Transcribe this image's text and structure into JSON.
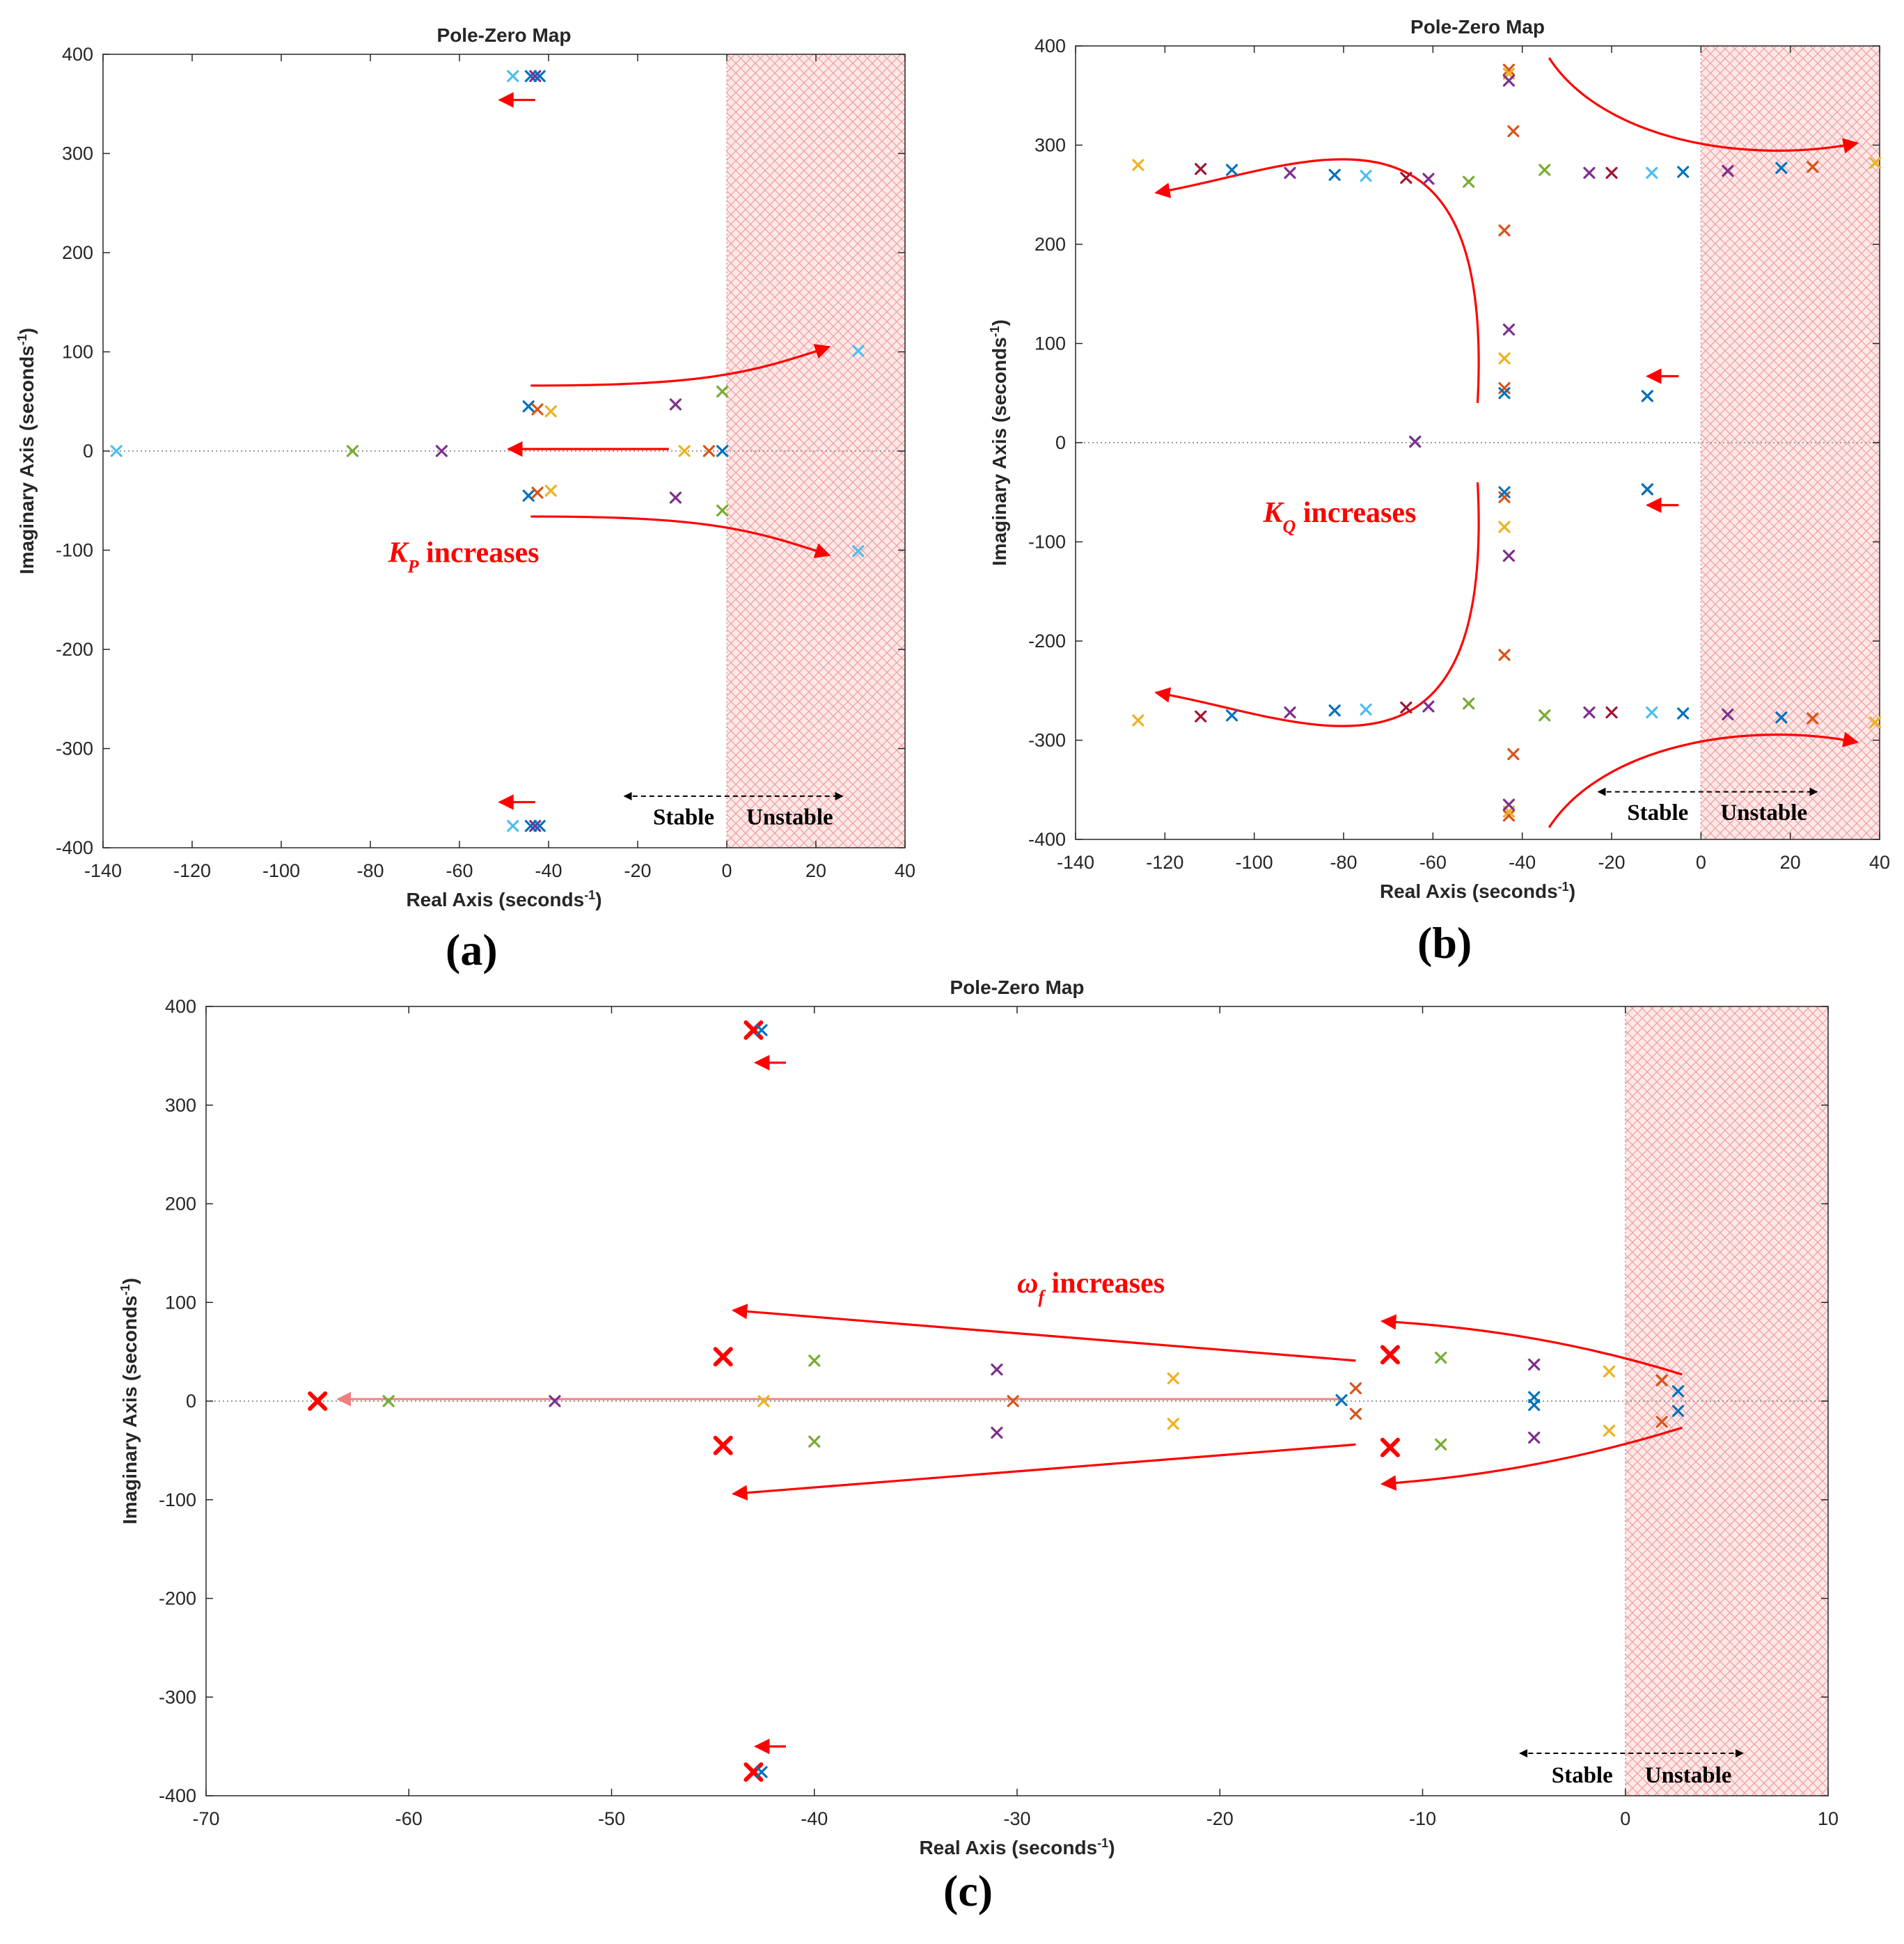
{
  "colors": {
    "blue": "#0072BD",
    "orange": "#D95319",
    "yellow": "#EDB120",
    "purple": "#7E2F8E",
    "green": "#77AC30",
    "cyan": "#4DBEEE",
    "maroon": "#A2142F",
    "red": "#FF0000",
    "unstable_fill": "#FFE4E4",
    "hatch": "#F0A0A0"
  },
  "chart_data": [
    {
      "type": "scatter",
      "panel": "(a)",
      "title": "Pole-Zero Map",
      "xlabel": "Real Axis (seconds",
      "ylabel": "Imaginary Axis (seconds",
      "unit_exp": "-1",
      "xlim": [
        -140,
        40
      ],
      "ylim": [
        -400,
        400
      ],
      "xticks": [
        -140,
        -120,
        -100,
        -80,
        -60,
        -40,
        -20,
        0,
        20,
        40
      ],
      "yticks": [
        -400,
        -300,
        -200,
        -100,
        0,
        100,
        200,
        300,
        400
      ],
      "unstable_region": [
        0,
        40
      ],
      "annotation": {
        "x": -76,
        "y": -112,
        "main": "K",
        "sub": "P",
        "rest": " increases"
      },
      "stability_labels": {
        "stable": "Stable",
        "unstable": "Unstable",
        "y": -368
      },
      "stability_arrow": {
        "x1": -23,
        "x2": 26,
        "y": -348
      },
      "poles": [
        {
          "x": -48,
          "y": 378,
          "c": "cyan"
        },
        {
          "x": -44,
          "y": 378,
          "c": "blue"
        },
        {
          "x": -43,
          "y": 378,
          "c": "purple"
        },
        {
          "x": -42,
          "y": 378,
          "c": "blue"
        },
        {
          "x": -48,
          "y": -378,
          "c": "cyan"
        },
        {
          "x": -44,
          "y": -378,
          "c": "blue"
        },
        {
          "x": -43,
          "y": -378,
          "c": "purple"
        },
        {
          "x": -42,
          "y": -378,
          "c": "blue"
        },
        {
          "x": -137,
          "y": 0,
          "c": "cyan"
        },
        {
          "x": -84,
          "y": 0,
          "c": "green"
        },
        {
          "x": -64,
          "y": 0,
          "c": "purple"
        },
        {
          "x": -9.5,
          "y": 0,
          "c": "yellow"
        },
        {
          "x": -4,
          "y": 0,
          "c": "orange"
        },
        {
          "x": -1,
          "y": 0,
          "c": "blue"
        },
        {
          "x": -44.5,
          "y": 45,
          "c": "blue"
        },
        {
          "x": -42.5,
          "y": 42,
          "c": "orange"
        },
        {
          "x": -39.5,
          "y": 40,
          "c": "yellow"
        },
        {
          "x": -11.5,
          "y": 47,
          "c": "purple"
        },
        {
          "x": -1,
          "y": 60,
          "c": "green"
        },
        {
          "x": 29.5,
          "y": 101,
          "c": "cyan"
        },
        {
          "x": -44.5,
          "y": -45,
          "c": "blue"
        },
        {
          "x": -42.5,
          "y": -42,
          "c": "orange"
        },
        {
          "x": -39.5,
          "y": -40,
          "c": "yellow"
        },
        {
          "x": -11.5,
          "y": -47,
          "c": "purple"
        },
        {
          "x": -1,
          "y": -60,
          "c": "green"
        },
        {
          "x": 29.5,
          "y": -101,
          "c": "cyan"
        }
      ],
      "arrows": [
        {
          "pts": [
            [
              -43,
              354
            ],
            [
              -51,
              354
            ]
          ],
          "curve": false
        },
        {
          "pts": [
            [
              -43,
              -354
            ],
            [
              -51,
              -354
            ]
          ],
          "curve": false
        },
        {
          "pts": [
            [
              -13,
              2
            ],
            [
              -49,
              2
            ]
          ],
          "curve": false
        },
        {
          "pts": [
            [
              -44,
              66
            ],
            [
              -5,
              66
            ],
            [
              5,
              78
            ],
            [
              23,
              105
            ]
          ],
          "curve": true
        },
        {
          "pts": [
            [
              -44,
              -66
            ],
            [
              -5,
              -66
            ],
            [
              5,
              -78
            ],
            [
              23,
              -105
            ]
          ],
          "curve": true
        }
      ]
    },
    {
      "type": "scatter",
      "panel": "(b)",
      "title": "Pole-Zero Map",
      "xlabel": "Real Axis (seconds",
      "ylabel": "Imaginary Axis (seconds",
      "unit_exp": "-1",
      "xlim": [
        -140,
        40
      ],
      "ylim": [
        -400,
        400
      ],
      "xticks": [
        -140,
        -120,
        -100,
        -80,
        -60,
        -40,
        -20,
        0,
        20,
        40
      ],
      "yticks": [
        -400,
        -300,
        -200,
        -100,
        0,
        100,
        200,
        300,
        400
      ],
      "unstable_region": [
        0,
        40
      ],
      "annotation": {
        "x": -98,
        "y": -80,
        "main": "K",
        "sub": "Q",
        "rest": " increases"
      },
      "stability_labels": {
        "stable": "Stable",
        "unstable": "Unstable",
        "y": -372
      },
      "stability_arrow": {
        "x1": -23,
        "x2": 26,
        "y": -352
      },
      "poles": [
        {
          "x": -126,
          "y": 280,
          "c": "yellow"
        },
        {
          "x": -112,
          "y": 276,
          "c": "maroon"
        },
        {
          "x": -105,
          "y": 275,
          "c": "blue"
        },
        {
          "x": -92,
          "y": 272,
          "c": "purple"
        },
        {
          "x": -82,
          "y": 270,
          "c": "blue"
        },
        {
          "x": -75,
          "y": 269,
          "c": "cyan"
        },
        {
          "x": -66,
          "y": 267,
          "c": "maroon"
        },
        {
          "x": -61,
          "y": 266,
          "c": "purple"
        },
        {
          "x": -52,
          "y": 263,
          "c": "green"
        },
        {
          "x": -35,
          "y": 275,
          "c": "green"
        },
        {
          "x": -25,
          "y": 272,
          "c": "purple"
        },
        {
          "x": -20,
          "y": 272,
          "c": "maroon"
        },
        {
          "x": -11,
          "y": 272,
          "c": "cyan"
        },
        {
          "x": -4,
          "y": 273,
          "c": "blue"
        },
        {
          "x": 6,
          "y": 274,
          "c": "purple"
        },
        {
          "x": 18,
          "y": 277,
          "c": "blue"
        },
        {
          "x": 25,
          "y": 278,
          "c": "orange"
        },
        {
          "x": 39,
          "y": 282,
          "c": "yellow"
        },
        {
          "x": -126,
          "y": -280,
          "c": "yellow"
        },
        {
          "x": -112,
          "y": -276,
          "c": "maroon"
        },
        {
          "x": -105,
          "y": -275,
          "c": "blue"
        },
        {
          "x": -92,
          "y": -272,
          "c": "purple"
        },
        {
          "x": -82,
          "y": -270,
          "c": "blue"
        },
        {
          "x": -75,
          "y": -269,
          "c": "cyan"
        },
        {
          "x": -66,
          "y": -267,
          "c": "maroon"
        },
        {
          "x": -61,
          "y": -266,
          "c": "purple"
        },
        {
          "x": -52,
          "y": -263,
          "c": "green"
        },
        {
          "x": -35,
          "y": -275,
          "c": "green"
        },
        {
          "x": -25,
          "y": -272,
          "c": "purple"
        },
        {
          "x": -20,
          "y": -272,
          "c": "maroon"
        },
        {
          "x": -11,
          "y": -272,
          "c": "cyan"
        },
        {
          "x": -4,
          "y": -273,
          "c": "blue"
        },
        {
          "x": 6,
          "y": -274,
          "c": "purple"
        },
        {
          "x": 18,
          "y": -277,
          "c": "blue"
        },
        {
          "x": 25,
          "y": -278,
          "c": "orange"
        },
        {
          "x": 39,
          "y": -282,
          "c": "yellow"
        },
        {
          "x": -43,
          "y": 376,
          "c": "orange"
        },
        {
          "x": -43,
          "y": 372,
          "c": "yellow"
        },
        {
          "x": -43,
          "y": 365,
          "c": "purple"
        },
        {
          "x": -42,
          "y": 314,
          "c": "orange"
        },
        {
          "x": -44,
          "y": 214,
          "c": "orange"
        },
        {
          "x": -43,
          "y": 114,
          "c": "purple"
        },
        {
          "x": -44,
          "y": 85,
          "c": "yellow"
        },
        {
          "x": -44,
          "y": 55,
          "c": "orange"
        },
        {
          "x": -44,
          "y": 50,
          "c": "blue"
        },
        {
          "x": -43,
          "y": -376,
          "c": "orange"
        },
        {
          "x": -43,
          "y": -372,
          "c": "yellow"
        },
        {
          "x": -43,
          "y": -365,
          "c": "purple"
        },
        {
          "x": -42,
          "y": -314,
          "c": "orange"
        },
        {
          "x": -44,
          "y": -214,
          "c": "orange"
        },
        {
          "x": -43,
          "y": -114,
          "c": "purple"
        },
        {
          "x": -44,
          "y": -85,
          "c": "yellow"
        },
        {
          "x": -44,
          "y": -55,
          "c": "orange"
        },
        {
          "x": -44,
          "y": -50,
          "c": "blue"
        },
        {
          "x": -64,
          "y": 1,
          "c": "blue"
        },
        {
          "x": -64,
          "y": 1,
          "c": "purple"
        },
        {
          "x": -12,
          "y": 47,
          "c": "purple"
        },
        {
          "x": -12,
          "y": 47,
          "c": "blue"
        },
        {
          "x": -12,
          "y": -47,
          "c": "purple"
        },
        {
          "x": -12,
          "y": -47,
          "c": "blue"
        }
      ],
      "arrows": [
        {
          "pts": [
            [
              -50,
              40
            ],
            [
              -46,
              380
            ],
            [
              -90,
              276
            ],
            [
              -122,
              252
            ]
          ],
          "curve": true
        },
        {
          "pts": [
            [
              -50,
              -40
            ],
            [
              -46,
              -380
            ],
            [
              -90,
              -276
            ],
            [
              -122,
              -252
            ]
          ],
          "curve": true
        },
        {
          "pts": [
            [
              -34,
              388
            ],
            [
              -22,
              305
            ],
            [
              10,
              280
            ],
            [
              35,
              302
            ]
          ],
          "curve": true
        },
        {
          "pts": [
            [
              -34,
              -388
            ],
            [
              -22,
              -305
            ],
            [
              10,
              -280
            ],
            [
              35,
              -302
            ]
          ],
          "curve": true
        },
        {
          "pts": [
            [
              -5,
              67
            ],
            [
              -12,
              67
            ]
          ],
          "curve": false
        },
        {
          "pts": [
            [
              -5,
              -63
            ],
            [
              -12,
              -63
            ]
          ],
          "curve": false
        }
      ]
    },
    {
      "type": "scatter",
      "panel": "(c)",
      "title": "Pole-Zero Map",
      "xlabel": "Real Axis (seconds",
      "ylabel": "Imaginary Axis (seconds",
      "unit_exp": "-1",
      "xlim": [
        -70,
        10
      ],
      "ylim": [
        -400,
        400
      ],
      "xticks": [
        -70,
        -60,
        -50,
        -40,
        -30,
        -20,
        -10,
        0,
        10
      ],
      "yticks": [
        -400,
        -300,
        -200,
        -100,
        0,
        100,
        200,
        300,
        400
      ],
      "unstable_region": [
        0,
        10
      ],
      "annotation": {
        "x": -30,
        "y": 110,
        "main": "ω",
        "sub": "f",
        "rest": " increases"
      },
      "stability_labels": {
        "stable": "Stable",
        "unstable": "Unstable",
        "y": -378
      },
      "stability_arrow": {
        "x1": -5.2,
        "x2": 5.8,
        "y": -357
      },
      "poles": [
        {
          "x": -43,
          "y": 376,
          "c": "red",
          "big": true
        },
        {
          "x": -42.6,
          "y": 376,
          "c": "blue"
        },
        {
          "x": -43,
          "y": -376,
          "c": "red",
          "big": true
        },
        {
          "x": -42.6,
          "y": -376,
          "c": "blue"
        },
        {
          "x": -64.5,
          "y": 0,
          "c": "red",
          "big": true
        },
        {
          "x": -61,
          "y": 0,
          "c": "green"
        },
        {
          "x": -52.8,
          "y": 0,
          "c": "purple"
        },
        {
          "x": -42.5,
          "y": 0,
          "c": "yellow"
        },
        {
          "x": -30.2,
          "y": 0,
          "c": "orange"
        },
        {
          "x": -14,
          "y": 1,
          "c": "blue"
        },
        {
          "x": -44.5,
          "y": 45,
          "c": "red",
          "big": true
        },
        {
          "x": -40,
          "y": 41,
          "c": "green"
        },
        {
          "x": -31,
          "y": 32,
          "c": "purple"
        },
        {
          "x": -22.3,
          "y": 23,
          "c": "yellow"
        },
        {
          "x": -13.3,
          "y": 13,
          "c": "orange"
        },
        {
          "x": -11.6,
          "y": 47,
          "c": "red",
          "big": true
        },
        {
          "x": -9.1,
          "y": 44,
          "c": "green"
        },
        {
          "x": -4.5,
          "y": 37,
          "c": "purple"
        },
        {
          "x": -4.5,
          "y": 4,
          "c": "blue"
        },
        {
          "x": -0.8,
          "y": 30,
          "c": "yellow"
        },
        {
          "x": 1.8,
          "y": 21,
          "c": "orange"
        },
        {
          "x": 2.6,
          "y": 10,
          "c": "blue"
        },
        {
          "x": -44.5,
          "y": -45,
          "c": "red",
          "big": true
        },
        {
          "x": -40,
          "y": -41,
          "c": "green"
        },
        {
          "x": -31,
          "y": -32,
          "c": "purple"
        },
        {
          "x": -22.3,
          "y": -23,
          "c": "yellow"
        },
        {
          "x": -13.3,
          "y": -13,
          "c": "orange"
        },
        {
          "x": -11.6,
          "y": -47,
          "c": "red",
          "big": true
        },
        {
          "x": -9.1,
          "y": -44,
          "c": "green"
        },
        {
          "x": -4.5,
          "y": -37,
          "c": "purple"
        },
        {
          "x": -4.5,
          "y": -4,
          "c": "blue"
        },
        {
          "x": -0.8,
          "y": -30,
          "c": "yellow"
        },
        {
          "x": 1.8,
          "y": -21,
          "c": "orange"
        },
        {
          "x": 2.6,
          "y": -10,
          "c": "blue"
        }
      ],
      "arrows": [
        {
          "pts": [
            [
              -14,
              2
            ],
            [
              -63.5,
              2
            ]
          ],
          "curve": false,
          "soft": true
        },
        {
          "pts": [
            [
              -13.3,
              41
            ],
            [
              -44,
              92
            ]
          ],
          "curve": false
        },
        {
          "pts": [
            [
              -13.3,
              -44
            ],
            [
              -44,
              -94
            ]
          ],
          "curve": false
        },
        {
          "pts": [
            [
              2.8,
              27
            ],
            [
              -3,
              64
            ],
            [
              -8,
              76
            ],
            [
              -12,
              81
            ]
          ],
          "curve": true
        },
        {
          "pts": [
            [
              2.8,
              -27
            ],
            [
              -3,
              -64
            ],
            [
              -8,
              -78
            ],
            [
              -12,
              -84
            ]
          ],
          "curve": true
        },
        {
          "pts": [
            [
              -41.4,
              343
            ],
            [
              -42.9,
              343
            ]
          ],
          "curve": false
        },
        {
          "pts": [
            [
              -41.4,
              -350
            ],
            [
              -42.9,
              -350
            ]
          ],
          "curve": false
        }
      ]
    }
  ]
}
